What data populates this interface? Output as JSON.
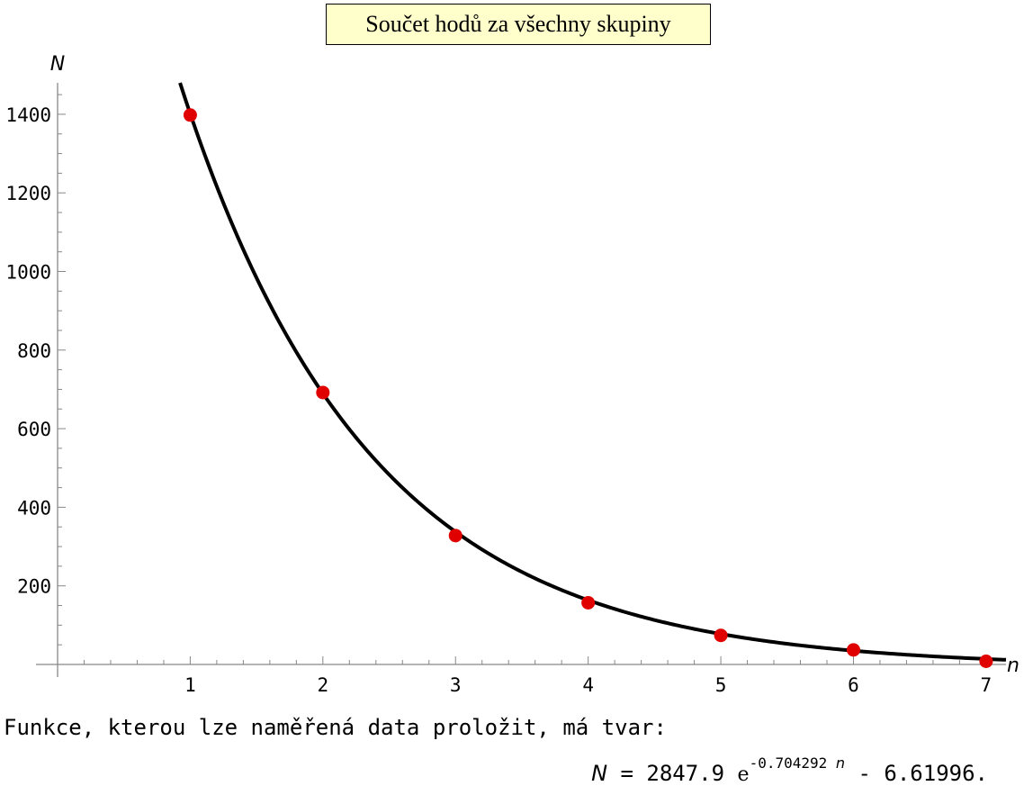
{
  "chart_data": {
    "type": "scatter",
    "title": "Součet hodů za všechny skupiny",
    "xlabel": "n",
    "ylabel": "N",
    "xlim": [
      0,
      7.15
    ],
    "ylim": [
      0,
      1480
    ],
    "xticks": [
      1,
      2,
      3,
      4,
      5,
      6,
      7
    ],
    "yticks": [
      200,
      400,
      600,
      800,
      1000,
      1200,
      1400
    ],
    "x_minor_step": 0.2,
    "y_minor_step": 50,
    "grid": false,
    "series": [
      {
        "type": "scatter",
        "x": [
          1,
          2,
          3,
          4,
          5,
          6,
          7
        ],
        "y": [
          1398,
          692,
          328,
          157,
          74,
          37,
          8
        ],
        "color": "#e00000"
      },
      {
        "type": "line",
        "function": {
          "a": 2847.9,
          "b": -0.704292,
          "c": -6.61996
        },
        "color": "#000000"
      }
    ]
  },
  "caption": "Funkce, kterou lze naměřená data proložit, má tvar:",
  "formula": {
    "lhs": "N",
    "equals": " = ",
    "coefficient": "2847.9",
    "base": "e",
    "exponent_coef": "-0.704292",
    "exponent_var": "n",
    "tail": " - 6.61996."
  }
}
